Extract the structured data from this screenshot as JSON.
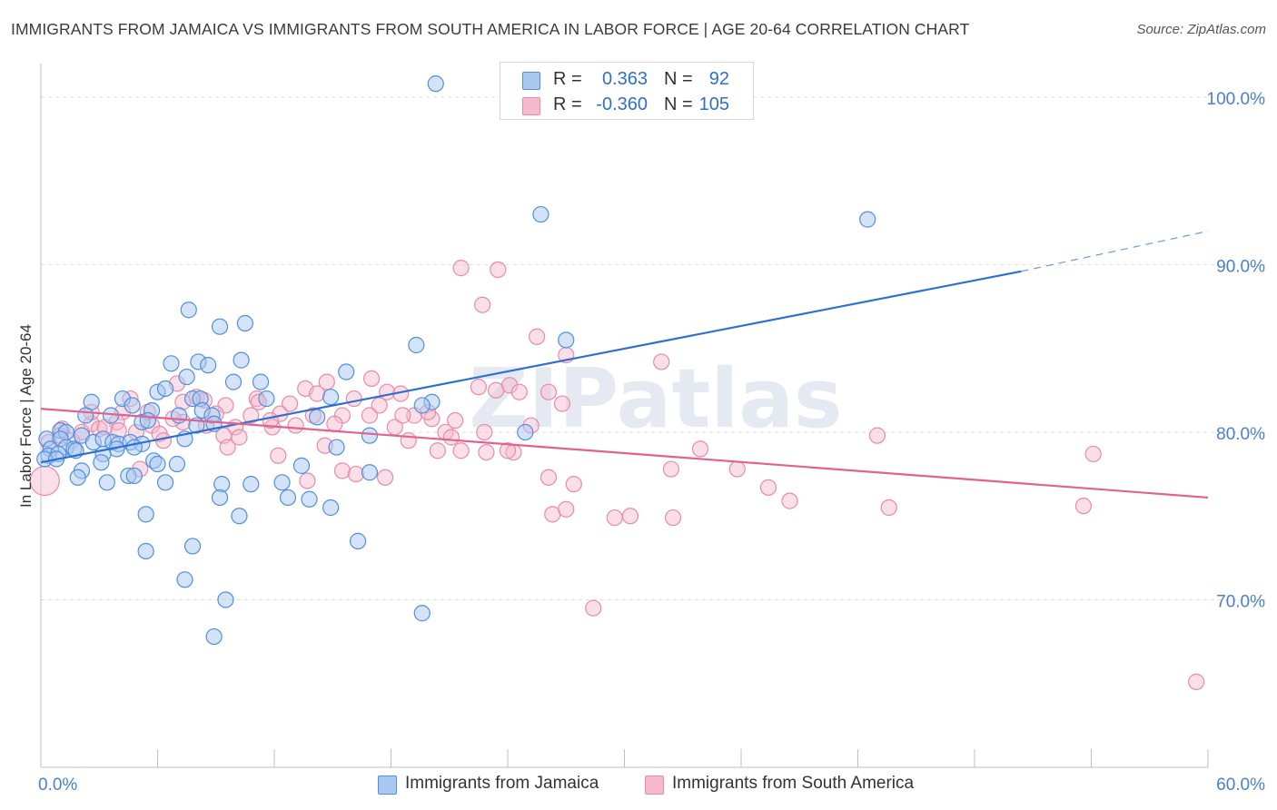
{
  "title": "IMMIGRANTS FROM JAMAICA VS IMMIGRANTS FROM SOUTH AMERICA IN LABOR FORCE | AGE 20-64 CORRELATION CHART",
  "source": "Source: ZipAtlas.com",
  "watermark": "ZIPatlas",
  "colors": {
    "jamaica_fill": "#a9c8f0",
    "jamaica_stroke": "#4f8fe0",
    "jamaica_line": "#2d6fcf",
    "sa_fill": "#f6b8cb",
    "sa_stroke": "#e98aa8",
    "sa_line": "#e0638d",
    "tick_label": "#4a7fd0",
    "grid": "#dedede"
  },
  "legend_top": {
    "rows": [
      {
        "r_label": "R =",
        "r_value": "0.363",
        "n_label": "N =",
        "n_value": "92"
      },
      {
        "r_label": "R =",
        "r_value": "-0.360",
        "n_label": "N =",
        "n_value": "105"
      }
    ]
  },
  "legend_bottom": [
    "Immigrants from Jamaica",
    "Immigrants from South America"
  ],
  "chart_data": {
    "type": "scatter",
    "xlabel": "",
    "ylabel": "In Labor Force | Age 20-64",
    "xlim": [
      0,
      60
    ],
    "ylim": [
      60,
      102
    ],
    "x_tick_labels": [
      {
        "value": 0,
        "label": "0.0%"
      },
      {
        "value": 60,
        "label": "60.0%"
      }
    ],
    "y_tick_labels": [
      {
        "value": 100,
        "label": "100.0%"
      },
      {
        "value": 90,
        "label": "90.0%"
      },
      {
        "value": 80,
        "label": "80.0%"
      },
      {
        "value": 70,
        "label": "70.0%"
      }
    ],
    "grid": true,
    "series": [
      {
        "name": "Immigrants from Jamaica",
        "color": "#4f8fe0",
        "trend": {
          "x": [
            0,
            50.4
          ],
          "y": [
            78.2,
            89.6
          ],
          "dashed_to": [
            60,
            92.0
          ]
        },
        "points": [
          [
            20.3,
            100.8
          ],
          [
            25.7,
            93.0
          ],
          [
            42.5,
            92.7
          ],
          [
            7.6,
            87.3
          ],
          [
            9.2,
            86.3
          ],
          [
            10.5,
            86.5
          ],
          [
            19.3,
            85.2
          ],
          [
            27.0,
            85.5
          ],
          [
            6.7,
            84.1
          ],
          [
            8.1,
            84.2
          ],
          [
            8.6,
            84.0
          ],
          [
            15.7,
            83.6
          ],
          [
            7.5,
            83.3
          ],
          [
            9.9,
            83.0
          ],
          [
            11.3,
            83.0
          ],
          [
            6.0,
            82.4
          ],
          [
            4.2,
            82.0
          ],
          [
            7.8,
            82.0
          ],
          [
            8.2,
            82.0
          ],
          [
            14.9,
            82.1
          ],
          [
            2.6,
            81.8
          ],
          [
            4.7,
            81.6
          ],
          [
            20.1,
            81.8
          ],
          [
            19.6,
            81.6
          ],
          [
            5.7,
            81.3
          ],
          [
            8.3,
            81.3
          ],
          [
            3.6,
            81.0
          ],
          [
            7.1,
            81.0
          ],
          [
            8.8,
            81.0
          ],
          [
            14.2,
            80.9
          ],
          [
            2.3,
            81.0
          ],
          [
            5.2,
            80.6
          ],
          [
            8.0,
            80.4
          ],
          [
            1.0,
            80.1
          ],
          [
            1.3,
            80.0
          ],
          [
            2.1,
            79.8
          ],
          [
            7.4,
            79.6
          ],
          [
            16.9,
            79.8
          ],
          [
            0.3,
            79.6
          ],
          [
            1.0,
            79.6
          ],
          [
            2.7,
            79.4
          ],
          [
            3.2,
            79.6
          ],
          [
            3.7,
            79.4
          ],
          [
            4.0,
            79.3
          ],
          [
            4.6,
            79.4
          ],
          [
            5.2,
            79.3
          ],
          [
            0.5,
            79.0
          ],
          [
            1.3,
            79.1
          ],
          [
            1.7,
            79.0
          ],
          [
            3.9,
            79.0
          ],
          [
            4.8,
            79.1
          ],
          [
            15.2,
            79.1
          ],
          [
            0.4,
            78.6
          ],
          [
            0.9,
            78.7
          ],
          [
            1.8,
            78.9
          ],
          [
            3.2,
            78.7
          ],
          [
            0.2,
            78.4
          ],
          [
            0.8,
            78.4
          ],
          [
            3.1,
            78.2
          ],
          [
            5.8,
            78.3
          ],
          [
            6.0,
            78.1
          ],
          [
            7.0,
            78.1
          ],
          [
            13.4,
            78.0
          ],
          [
            2.1,
            77.7
          ],
          [
            16.9,
            77.6
          ],
          [
            1.9,
            77.3
          ],
          [
            4.5,
            77.4
          ],
          [
            4.8,
            77.4
          ],
          [
            3.4,
            77.0
          ],
          [
            6.4,
            77.0
          ],
          [
            9.3,
            76.9
          ],
          [
            10.8,
            76.9
          ],
          [
            12.4,
            77.0
          ],
          [
            9.2,
            76.1
          ],
          [
            12.7,
            76.1
          ],
          [
            13.8,
            76.0
          ],
          [
            14.9,
            75.5
          ],
          [
            5.4,
            75.1
          ],
          [
            10.2,
            75.0
          ],
          [
            16.3,
            73.5
          ],
          [
            5.4,
            72.9
          ],
          [
            7.8,
            73.2
          ],
          [
            7.4,
            71.2
          ],
          [
            9.5,
            70.0
          ],
          [
            19.6,
            69.2
          ],
          [
            8.9,
            67.8
          ],
          [
            24.9,
            80.0
          ],
          [
            11.6,
            82.0
          ],
          [
            10.3,
            84.3
          ],
          [
            6.4,
            82.6
          ],
          [
            5.5,
            80.7
          ],
          [
            8.9,
            80.5
          ]
        ]
      },
      {
        "name": "Immigrants from South America",
        "color": "#e98aa8",
        "trend": {
          "x": [
            0,
            60
          ],
          "y": [
            81.4,
            76.1
          ]
        },
        "points": [
          [
            21.6,
            89.8
          ],
          [
            23.5,
            89.7
          ],
          [
            22.7,
            87.6
          ],
          [
            25.5,
            85.7
          ],
          [
            27.0,
            84.6
          ],
          [
            31.9,
            84.2
          ],
          [
            17.0,
            83.2
          ],
          [
            13.6,
            82.6
          ],
          [
            14.7,
            83.0
          ],
          [
            22.5,
            82.7
          ],
          [
            24.1,
            82.8
          ],
          [
            8.0,
            82.1
          ],
          [
            11.1,
            82.0
          ],
          [
            14.2,
            82.3
          ],
          [
            16.1,
            82.0
          ],
          [
            17.8,
            82.4
          ],
          [
            18.5,
            82.3
          ],
          [
            23.4,
            82.5
          ],
          [
            24.6,
            82.4
          ],
          [
            26.1,
            82.4
          ],
          [
            7.0,
            82.9
          ],
          [
            4.6,
            82.0
          ],
          [
            9.5,
            81.6
          ],
          [
            11.2,
            81.8
          ],
          [
            12.8,
            81.7
          ],
          [
            17.4,
            81.6
          ],
          [
            4.2,
            81.2
          ],
          [
            5.5,
            81.2
          ],
          [
            9.0,
            81.1
          ],
          [
            10.8,
            81.0
          ],
          [
            12.3,
            81.1
          ],
          [
            14.0,
            81.0
          ],
          [
            15.5,
            81.0
          ],
          [
            16.9,
            81.0
          ],
          [
            19.2,
            81.0
          ],
          [
            20.1,
            80.8
          ],
          [
            21.3,
            80.7
          ],
          [
            2.6,
            80.5
          ],
          [
            3.9,
            80.6
          ],
          [
            5.7,
            80.4
          ],
          [
            7.3,
            80.6
          ],
          [
            8.5,
            80.4
          ],
          [
            10.0,
            80.3
          ],
          [
            11.9,
            80.3
          ],
          [
            13.1,
            80.4
          ],
          [
            18.2,
            80.3
          ],
          [
            20.8,
            80.0
          ],
          [
            25.2,
            80.4
          ],
          [
            1.1,
            80.2
          ],
          [
            2.1,
            80.0
          ],
          [
            3.0,
            80.2
          ],
          [
            4.9,
            80.0
          ],
          [
            6.1,
            79.9
          ],
          [
            9.4,
            79.8
          ],
          [
            10.2,
            79.7
          ],
          [
            18.9,
            79.5
          ],
          [
            21.1,
            79.7
          ],
          [
            22.8,
            80.0
          ],
          [
            33.9,
            79.0
          ],
          [
            43.0,
            79.8
          ],
          [
            0.4,
            79.4
          ],
          [
            1.6,
            79.5
          ],
          [
            6.3,
            79.5
          ],
          [
            9.6,
            79.1
          ],
          [
            14.6,
            79.2
          ],
          [
            20.4,
            78.9
          ],
          [
            21.6,
            78.9
          ],
          [
            22.9,
            78.8
          ],
          [
            24.3,
            78.8
          ],
          [
            12.2,
            78.6
          ],
          [
            54.1,
            78.7
          ],
          [
            0.2,
            77.1
          ],
          [
            13.7,
            77.1
          ],
          [
            15.5,
            77.7
          ],
          [
            16.2,
            77.5
          ],
          [
            17.7,
            77.3
          ],
          [
            26.1,
            77.3
          ],
          [
            27.4,
            76.9
          ],
          [
            32.4,
            77.8
          ],
          [
            35.8,
            77.8
          ],
          [
            37.4,
            76.7
          ],
          [
            38.5,
            75.9
          ],
          [
            43.6,
            75.5
          ],
          [
            53.6,
            75.6
          ],
          [
            26.3,
            75.1
          ],
          [
            27.0,
            75.4
          ],
          [
            29.5,
            74.9
          ],
          [
            30.3,
            75.0
          ],
          [
            32.5,
            74.9
          ],
          [
            28.4,
            69.5
          ],
          [
            59.4,
            65.1
          ],
          [
            5.1,
            77.8
          ],
          [
            7.3,
            81.8
          ],
          [
            3.3,
            80.3
          ],
          [
            1.0,
            79.8
          ],
          [
            26.8,
            81.7
          ],
          [
            18.6,
            81.0
          ],
          [
            11.8,
            80.7
          ],
          [
            8.4,
            81.9
          ],
          [
            15.1,
            80.5
          ],
          [
            4.0,
            80.1
          ],
          [
            6.8,
            80.8
          ],
          [
            19.9,
            81.2
          ],
          [
            24.0,
            78.9
          ],
          [
            2.6,
            81.2
          ]
        ]
      }
    ]
  }
}
